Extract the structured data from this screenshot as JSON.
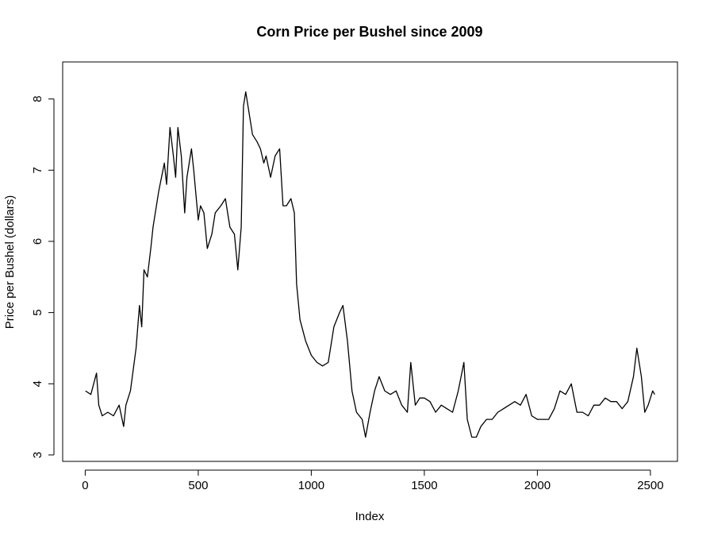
{
  "chart_data": {
    "type": "line",
    "title": "Corn Price per Bushel since 2009",
    "x_label": "Index",
    "y_label": "Price per Bushel (dollars)",
    "color": "#000000",
    "xlim": [
      -99.7,
      2619.7
    ],
    "ylim": [
      2.91,
      8.52
    ],
    "xticks": [
      0,
      500,
      1000,
      1500,
      2000,
      2500
    ],
    "yticks": [
      3,
      4,
      5,
      6,
      7,
      8
    ],
    "x": [
      1,
      25,
      50,
      60,
      75,
      100,
      125,
      150,
      170,
      180,
      200,
      225,
      240,
      250,
      260,
      275,
      290,
      300,
      325,
      350,
      360,
      375,
      390,
      400,
      410,
      425,
      440,
      450,
      470,
      480,
      500,
      510,
      525,
      540,
      560,
      575,
      600,
      620,
      640,
      660,
      675,
      690,
      700,
      710,
      720,
      740,
      760,
      775,
      790,
      800,
      820,
      840,
      860,
      875,
      890,
      910,
      925,
      935,
      950,
      975,
      1000,
      1025,
      1050,
      1075,
      1100,
      1125,
      1140,
      1160,
      1180,
      1200,
      1225,
      1240,
      1260,
      1280,
      1300,
      1325,
      1350,
      1375,
      1400,
      1425,
      1440,
      1460,
      1480,
      1500,
      1525,
      1550,
      1575,
      1600,
      1625,
      1650,
      1675,
      1690,
      1710,
      1730,
      1750,
      1775,
      1800,
      1825,
      1850,
      1875,
      1900,
      1925,
      1950,
      1975,
      2000,
      2025,
      2050,
      2075,
      2100,
      2125,
      2150,
      2175,
      2200,
      2225,
      2250,
      2275,
      2300,
      2325,
      2350,
      2375,
      2400,
      2425,
      2440,
      2460,
      2475,
      2490,
      2510,
      2519
    ],
    "values": [
      3.9,
      3.85,
      4.15,
      3.7,
      3.55,
      3.6,
      3.55,
      3.7,
      3.4,
      3.7,
      3.9,
      4.5,
      5.1,
      4.8,
      5.6,
      5.5,
      5.9,
      6.2,
      6.7,
      7.1,
      6.8,
      7.6,
      7.2,
      6.9,
      7.6,
      7.2,
      6.4,
      6.9,
      7.3,
      7.0,
      6.3,
      6.5,
      6.4,
      5.9,
      6.1,
      6.4,
      6.5,
      6.6,
      6.2,
      6.1,
      5.6,
      6.2,
      7.9,
      8.1,
      7.9,
      7.5,
      7.4,
      7.3,
      7.1,
      7.2,
      6.9,
      7.2,
      7.3,
      6.5,
      6.5,
      6.6,
      6.4,
      5.4,
      4.9,
      4.6,
      4.4,
      4.3,
      4.25,
      4.3,
      4.8,
      5.0,
      5.1,
      4.6,
      3.9,
      3.6,
      3.5,
      3.25,
      3.6,
      3.9,
      4.1,
      3.9,
      3.85,
      3.9,
      3.7,
      3.6,
      4.3,
      3.7,
      3.8,
      3.8,
      3.75,
      3.6,
      3.7,
      3.65,
      3.6,
      3.9,
      4.3,
      3.5,
      3.25,
      3.25,
      3.4,
      3.5,
      3.5,
      3.6,
      3.65,
      3.7,
      3.75,
      3.7,
      3.85,
      3.55,
      3.5,
      3.5,
      3.5,
      3.65,
      3.9,
      3.85,
      4.0,
      3.6,
      3.6,
      3.55,
      3.7,
      3.7,
      3.8,
      3.75,
      3.75,
      3.65,
      3.75,
      4.1,
      4.5,
      4.1,
      3.6,
      3.7,
      3.9,
      3.85
    ]
  }
}
